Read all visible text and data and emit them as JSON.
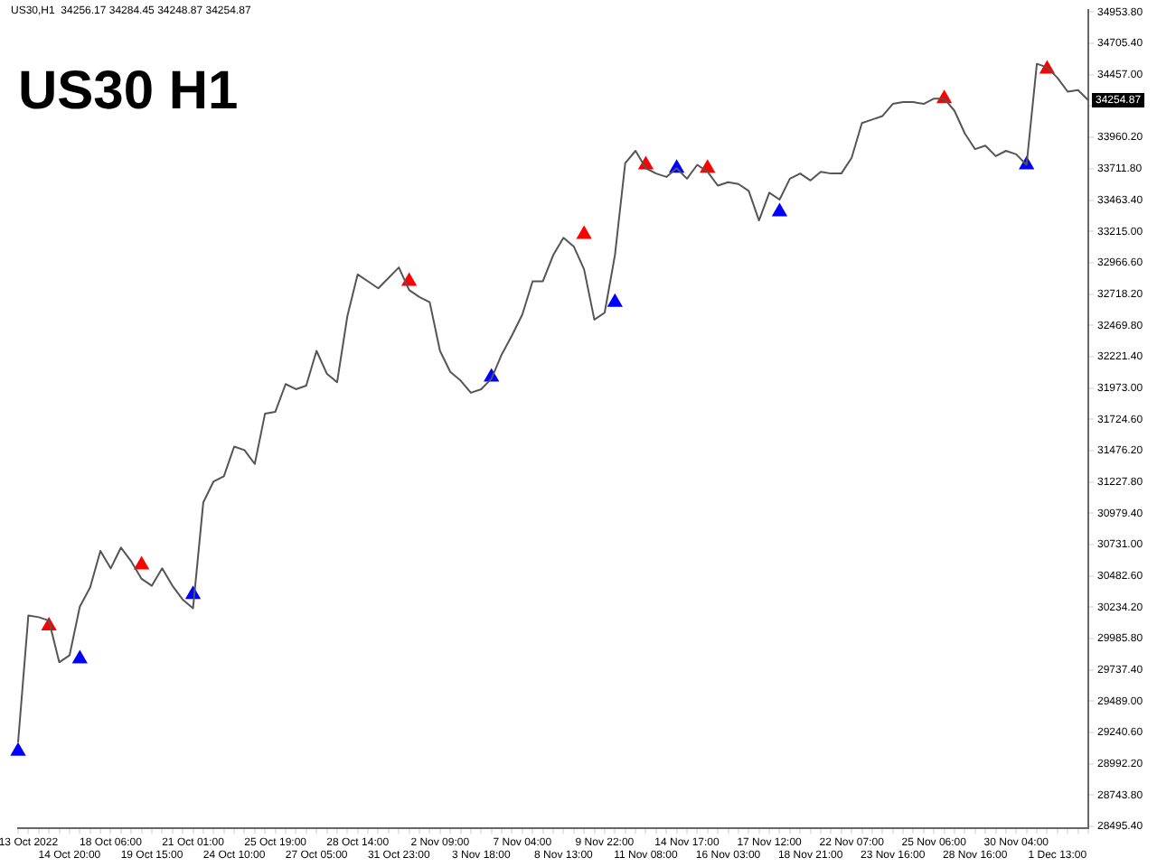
{
  "chart_data": {
    "type": "line",
    "title": "US30 H1",
    "annotations": [
      "US30,H1  34256.17 34284.45 34248.87 34254.87",
      "34254.87"
    ],
    "categories": [
      null,
      "13 Oct 2022",
      null,
      null,
      null,
      "14 Oct 20:00",
      null,
      null,
      null,
      "18 Oct 06:00",
      null,
      null,
      null,
      "19 Oct 15:00",
      null,
      null,
      null,
      "21 Oct 01:00",
      null,
      null,
      null,
      "24 Oct 10:00",
      null,
      null,
      null,
      "25 Oct 19:00",
      null,
      null,
      null,
      "27 Oct 05:00",
      null,
      null,
      null,
      "28 Oct 14:00",
      null,
      null,
      null,
      "31 Oct 23:00",
      null,
      null,
      null,
      "2 Nov 09:00",
      null,
      null,
      null,
      "3 Nov 18:00",
      null,
      null,
      null,
      "7 Nov 04:00",
      null,
      null,
      null,
      "8 Nov 13:00",
      null,
      null,
      null,
      "9 Nov 22:00",
      null,
      null,
      null,
      "11 Nov 08:00",
      null,
      null,
      null,
      "14 Nov 17:00",
      null,
      null,
      null,
      "16 Nov 03:00",
      null,
      null,
      null,
      "17 Nov 12:00",
      null,
      null,
      null,
      "18 Nov 21:00",
      null,
      null,
      null,
      "22 Nov 07:00",
      null,
      null,
      null,
      "23 Nov 16:00",
      null,
      null,
      null,
      "25 Nov 06:00",
      null,
      null,
      null,
      "28 Nov 16:00",
      null,
      null,
      null,
      "30 Nov 04:00",
      null,
      null,
      null,
      "1 Dec 13:00",
      null,
      null,
      null
    ],
    "series": [
      {
        "color": "#555555",
        "values": [
          29162,
          30169,
          30155,
          30128,
          29797,
          29852,
          30238,
          30390,
          30680,
          30542,
          30707,
          30597,
          30459,
          30404,
          30542,
          30404,
          30294,
          30225,
          31066,
          31232,
          31273,
          31508,
          31480,
          31370,
          31770,
          31784,
          32004,
          31963,
          31991,
          32267,
          32087,
          32018,
          32543,
          32874,
          32819,
          32763,
          32846,
          32929,
          32750,
          32694,
          32653,
          32267,
          32101,
          32032,
          31935,
          31963,
          32046,
          32239,
          32391,
          32556,
          32819,
          32819,
          33026,
          33164,
          33095,
          32915,
          32515,
          32570,
          33026,
          33757,
          33854,
          33716,
          33674,
          33647,
          33716,
          33633,
          33743,
          33688,
          33578,
          33605,
          33591,
          33536,
          33302,
          33522,
          33467,
          33633,
          33674,
          33619,
          33688,
          33674,
          33674,
          33798,
          34074,
          34102,
          34130,
          34226,
          34240,
          34240,
          34226,
          34268,
          34268,
          34171,
          33992,
          33867,
          33895,
          33812,
          33854,
          33826,
          33743,
          34544,
          34516,
          34433,
          34323,
          34336,
          34255
        ]
      },
      {
        "type": "scatter",
        "color": "#0000ff",
        "marker": "triangle",
        "values": [
          29093,
          null,
          null,
          null,
          null,
          null,
          29824,
          null,
          null,
          null,
          null,
          null,
          null,
          null,
          null,
          null,
          null,
          30335,
          null,
          null,
          null,
          null,
          null,
          null,
          null,
          null,
          null,
          null,
          null,
          null,
          null,
          null,
          null,
          null,
          null,
          null,
          null,
          null,
          null,
          null,
          null,
          null,
          null,
          null,
          null,
          null,
          32060,
          null,
          null,
          null,
          null,
          null,
          null,
          null,
          null,
          null,
          null,
          null,
          32653,
          null,
          null,
          null,
          null,
          null,
          33716,
          null,
          null,
          null,
          null,
          null,
          null,
          null,
          null,
          null,
          33371,
          null,
          null,
          null,
          null,
          null,
          null,
          null,
          null,
          null,
          null,
          null,
          null,
          null,
          null,
          null,
          null,
          null,
          null,
          null,
          null,
          null,
          null,
          null,
          33743,
          null,
          null,
          null,
          null,
          null,
          null
        ]
      },
      {
        "type": "scatter",
        "color": "#ff0000",
        "marker": "triangle",
        "values": [
          null,
          null,
          null,
          30086,
          null,
          null,
          null,
          null,
          null,
          null,
          null,
          null,
          30569,
          null,
          null,
          null,
          null,
          null,
          null,
          null,
          null,
          null,
          null,
          null,
          null,
          null,
          null,
          null,
          null,
          null,
          null,
          null,
          null,
          null,
          null,
          null,
          null,
          null,
          32819,
          null,
          null,
          null,
          null,
          null,
          null,
          null,
          null,
          null,
          null,
          null,
          null,
          null,
          null,
          null,
          null,
          33191,
          null,
          null,
          null,
          null,
          null,
          33743,
          null,
          null,
          null,
          null,
          null,
          33716,
          null,
          null,
          null,
          null,
          null,
          null,
          null,
          null,
          null,
          null,
          null,
          null,
          null,
          null,
          null,
          null,
          null,
          null,
          null,
          null,
          null,
          null,
          34268,
          null,
          null,
          null,
          null,
          null,
          null,
          null,
          null,
          null,
          34502,
          null,
          null,
          null,
          null
        ]
      }
    ],
    "ylim": [
      28480,
      34970
    ],
    "yticks": [
      {
        "value": 28495.4,
        "label": "28495.40"
      },
      {
        "value": 28743.8,
        "label": "28743.80"
      },
      {
        "value": 28992.2,
        "label": "28992.20"
      },
      {
        "value": 29240.6,
        "label": "29240.60"
      },
      {
        "value": 29489.0,
        "label": "29489.00"
      },
      {
        "value": 29737.4,
        "label": "29737.40"
      },
      {
        "value": 29985.8,
        "label": "29985.80"
      },
      {
        "value": 30234.2,
        "label": "30234.20"
      },
      {
        "value": 30482.6,
        "label": "30482.60"
      },
      {
        "value": 30731.0,
        "label": "30731.00"
      },
      {
        "value": 30979.4,
        "label": "30979.40"
      },
      {
        "value": 31227.8,
        "label": "31227.80"
      },
      {
        "value": 31476.2,
        "label": "31476.20"
      },
      {
        "value": 31724.6,
        "label": "31724.60"
      },
      {
        "value": 31973.0,
        "label": "31973.00"
      },
      {
        "value": 32221.4,
        "label": "32221.40"
      },
      {
        "value": 32469.8,
        "label": "32469.80"
      },
      {
        "value": 32718.2,
        "label": "32718.20"
      },
      {
        "value": 32966.6,
        "label": "32966.60"
      },
      {
        "value": 33215.0,
        "label": "33215.00"
      },
      {
        "value": 33463.4,
        "label": "33463.40"
      },
      {
        "value": 33711.8,
        "label": "33711.80"
      },
      {
        "value": 33960.2,
        "label": "33960.20"
      },
      {
        "value": 34208.6,
        "label": null
      },
      {
        "value": 34457.0,
        "label": "34457.00"
      },
      {
        "value": 34705.4,
        "label": "34705.40"
      },
      {
        "value": 34953.8,
        "label": "34953.80"
      }
    ],
    "grid": false,
    "legend": false
  }
}
